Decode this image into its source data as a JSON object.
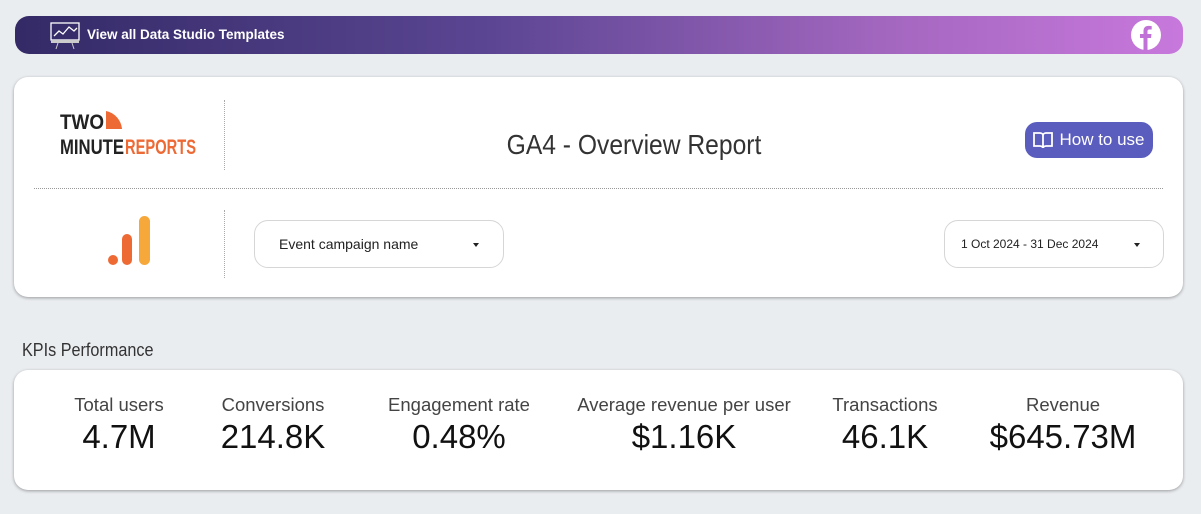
{
  "banner": {
    "label": "View all Data Studio Templates",
    "left_icon": "presentation-chart-icon",
    "right_icon": "facebook-icon"
  },
  "header": {
    "logo_text": "TWO MINUTE REPORTS",
    "title": "GA4 - Overview Report",
    "how_to_use": "How to use",
    "filter_label": "Event campaign name",
    "date_range": "1 Oct 2024 - 31 Dec 2024"
  },
  "colors": {
    "accent": "#5a5cbe",
    "brand_orange": "#ee6a35",
    "ga_yellow": "#f6a83b"
  },
  "kpi_section": {
    "title": "KPIs Performance",
    "items": [
      {
        "label": "Total users",
        "value": "4.7M"
      },
      {
        "label": "Conversions",
        "value": "214.8K"
      },
      {
        "label": "Engagement rate",
        "value": "0.48%"
      },
      {
        "label": "Average revenue per user",
        "value": "$1.16K"
      },
      {
        "label": "Transactions",
        "value": "46.1K"
      },
      {
        "label": "Revenue",
        "value": "$645.73M"
      }
    ]
  }
}
